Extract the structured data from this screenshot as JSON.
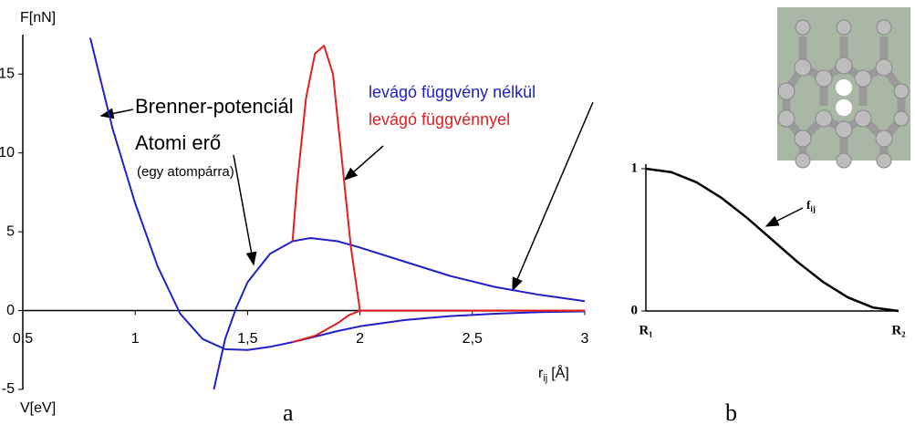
{
  "chart_data": [
    {
      "type": "line",
      "panel_label": "a",
      "y_label": "F[nN]",
      "energy_label": "V[eV]",
      "x_label": "r",
      "x_label_subscript": "ij",
      "x_label_unit": "[Å]",
      "xlim": [
        0.5,
        3
      ],
      "xticks": [
        {
          "value": 0.5,
          "label": "0,5"
        },
        1,
        {
          "value": 1.5,
          "label": "1,5"
        },
        2,
        {
          "value": 2.5,
          "label": "2,5"
        },
        3
      ],
      "ylim": [
        -5,
        17.5
      ],
      "yticks": [
        -5,
        0,
        5,
        10,
        15
      ],
      "series": [
        {
          "color": "#2020c8",
          "x": [
            0.8,
            0.9,
            1.0,
            1.1,
            1.2,
            1.3,
            1.4,
            1.5,
            1.6,
            1.7,
            1.8,
            1.9,
            2.0,
            2.2,
            2.4,
            2.6,
            2.8,
            3.0
          ],
          "values": [
            17.3,
            11.5,
            6.8,
            2.8,
            -0.2,
            -1.8,
            -2.45,
            -2.5,
            -2.3,
            -2.0,
            -1.65,
            -1.3,
            -1.0,
            -0.6,
            -0.35,
            -0.2,
            -0.1,
            -0.05
          ]
        },
        {
          "color": "#2020c8",
          "x": [
            1.35,
            1.4,
            1.45,
            1.5,
            1.6,
            1.7,
            1.78,
            1.9,
            2.0,
            2.2,
            2.4,
            2.6,
            2.8,
            3.0
          ],
          "values": [
            -5,
            -1.8,
            0.2,
            1.8,
            3.6,
            4.4,
            4.6,
            4.4,
            4.0,
            3.1,
            2.2,
            1.5,
            1.0,
            0.6
          ]
        },
        {
          "color": "#e02020",
          "x": [
            1.7,
            1.72,
            1.76,
            1.8,
            1.84,
            1.88,
            1.92,
            1.96,
            2.0,
            2.2,
            2.6,
            3.0
          ],
          "values": [
            4.4,
            8.0,
            13.5,
            16.3,
            16.8,
            15.0,
            9.5,
            4.0,
            0,
            0,
            0,
            0
          ]
        },
        {
          "color": "#e02020",
          "x": [
            1.7,
            1.8,
            1.9,
            1.95,
            2.0,
            2.5,
            3.0
          ],
          "values": [
            -2.0,
            -1.6,
            -0.8,
            -0.3,
            0,
            0,
            0
          ]
        }
      ],
      "annotations": {
        "brenner": "Brenner-potenciál",
        "atomic_force": "Atomi erő",
        "per_pair": "(egy atompárra)",
        "without_cutoff": "levágó függvény nélkül",
        "with_cutoff": "levágó függvénnyel"
      }
    },
    {
      "type": "line",
      "panel_label": "b",
      "xlim": [
        0,
        1
      ],
      "xticks": [
        {
          "value": 0,
          "label": "R₁"
        },
        {
          "value": 1,
          "label": "R₂"
        }
      ],
      "ylim": [
        0,
        1
      ],
      "yticks": [
        0,
        1
      ],
      "series": [
        {
          "color": "#000000",
          "x": [
            0,
            0.1,
            0.2,
            0.3,
            0.4,
            0.5,
            0.6,
            0.7,
            0.8,
            0.9,
            1
          ],
          "values": [
            1,
            0.976,
            0.905,
            0.794,
            0.655,
            0.5,
            0.345,
            0.206,
            0.095,
            0.024,
            0
          ]
        }
      ],
      "curve_label": "f",
      "curve_label_subscript": "ij"
    }
  ]
}
